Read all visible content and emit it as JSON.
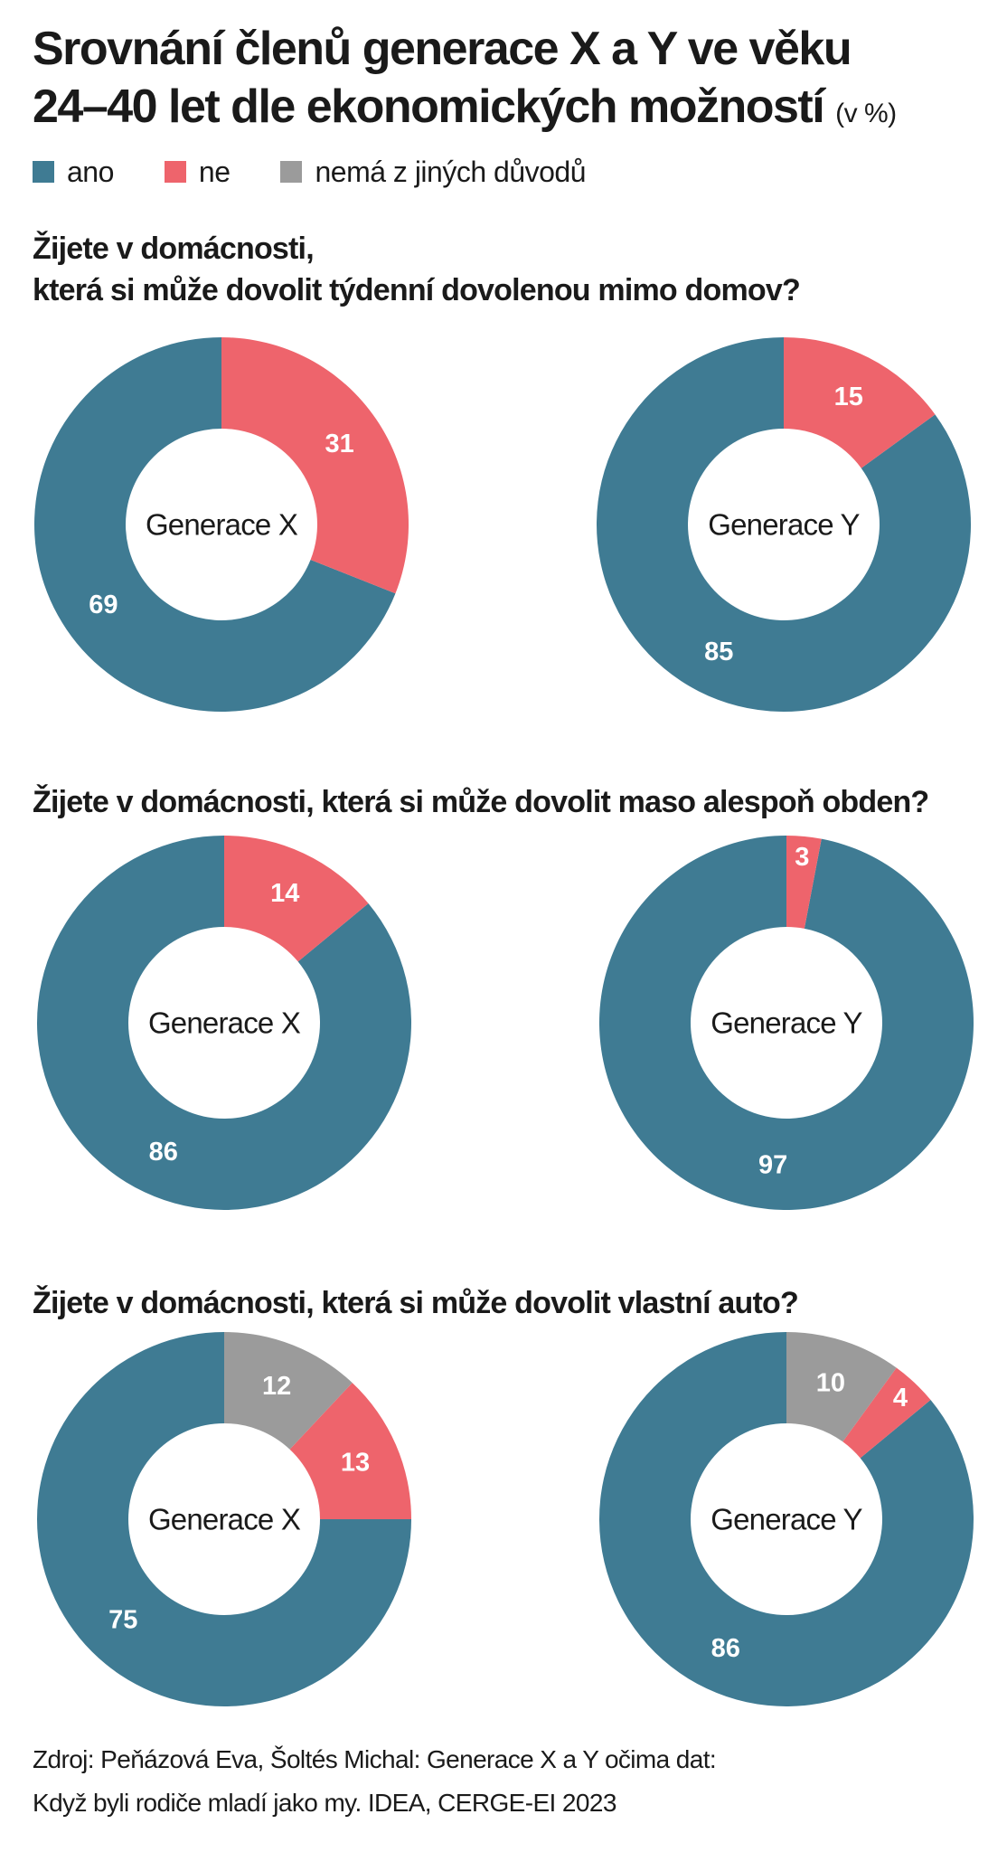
{
  "title": {
    "line1": "Srovnání členů generace X a Y ve věku",
    "line2": "24–40 let dle ekonomických možností",
    "unit": "(v %)"
  },
  "legend": [
    {
      "label": "ano",
      "color": "#3f7b93"
    },
    {
      "label": "ne",
      "color": "#ee646c"
    },
    {
      "label": "nemá z jiných důvodů",
      "color": "#9b9b9b"
    }
  ],
  "source": {
    "line1": "Zdroj: Peňázová Eva, Šoltés Michal: Generace X a Y očima dat:",
    "line2": "Když byli rodiče mladí jako my. IDEA, CERGE-EI 2023"
  },
  "chart_data": [
    {
      "type": "pie",
      "title": "Žijete v domácnosti, která si může dovolit týdenní dovolenou mimo domov?",
      "title_lines": [
        "Žijete v domácnosti,",
        "která si může dovolit týdenní dovolenou mimo domov?"
      ],
      "charts": [
        {
          "label": "Generace X",
          "slices": [
            {
              "name": "ano",
              "value": 69
            },
            {
              "name": "ne",
              "value": 31
            }
          ]
        },
        {
          "label": "Generace Y",
          "slices": [
            {
              "name": "ano",
              "value": 85
            },
            {
              "name": "ne",
              "value": 15
            }
          ]
        }
      ]
    },
    {
      "type": "pie",
      "title": "Žijete v domácnosti, která si může dovolit maso alespoň obden?",
      "title_lines": [
        "Žijete v domácnosti, která si může dovolit maso alespoň obden?"
      ],
      "charts": [
        {
          "label": "Generace X",
          "slices": [
            {
              "name": "ano",
              "value": 86
            },
            {
              "name": "ne",
              "value": 14
            }
          ]
        },
        {
          "label": "Generace Y",
          "slices": [
            {
              "name": "ano",
              "value": 97
            },
            {
              "name": "ne",
              "value": 3
            }
          ]
        }
      ]
    },
    {
      "type": "pie",
      "title": "Žijete v domácnosti, která si může dovolit vlastní auto?",
      "title_lines": [
        "Žijete v domácnosti, která si může dovolit vlastní auto?"
      ],
      "charts": [
        {
          "label": "Generace X",
          "slices": [
            {
              "name": "ano",
              "value": 75
            },
            {
              "name": "ne",
              "value": 13
            },
            {
              "name": "nemá z jiných důvodů",
              "value": 12
            }
          ]
        },
        {
          "label": "Generace Y",
          "slices": [
            {
              "name": "ano",
              "value": 86
            },
            {
              "name": "ne",
              "value": 4
            },
            {
              "name": "nemá z jiných důvodů",
              "value": 10
            }
          ]
        }
      ]
    }
  ]
}
